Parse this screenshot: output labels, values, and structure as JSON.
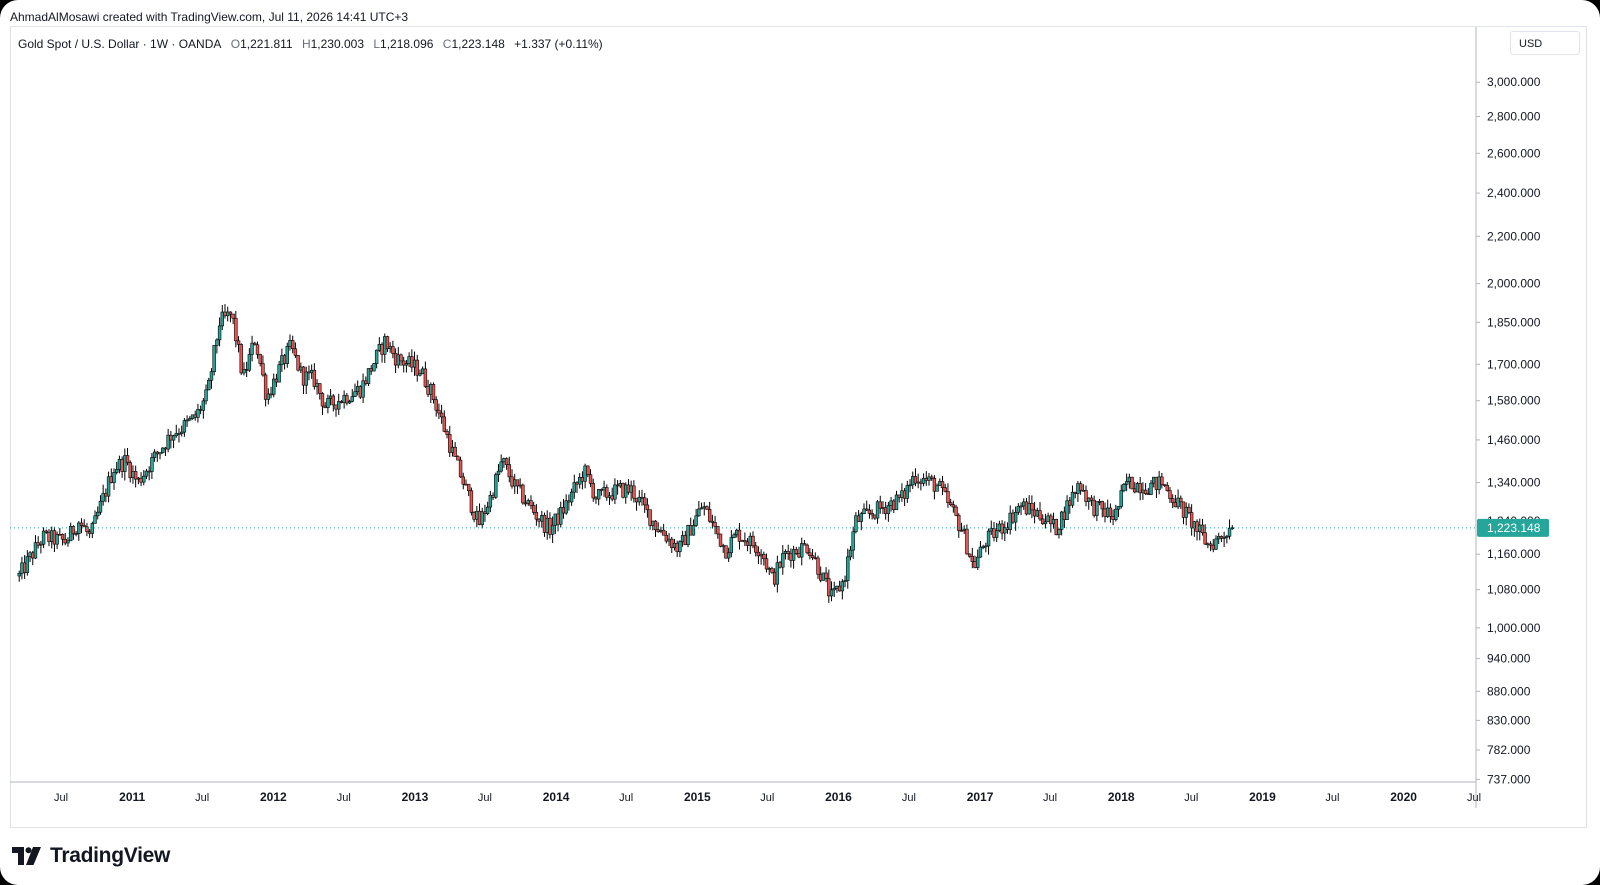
{
  "attribution": "AhmadAlMosawi created with TradingView.com, Jul 11, 2026 14:41 UTC+3",
  "legend": {
    "symbol": "Gold Spot / U.S. Dollar · 1W · OANDA",
    "open_label": "O",
    "open": "1,221.811",
    "high_label": "H",
    "high": "1,230.003",
    "low_label": "L",
    "low": "1,218.096",
    "close_label": "C",
    "close": "1,223.148",
    "change": "+1.337 (+0.11%)"
  },
  "currency_button": "USD",
  "brand": "TradingView",
  "colors": {
    "up": "#26a69a",
    "down": "#ef5350",
    "candle_outline": "#000000",
    "price_line": "#26a69a",
    "label_bg": "#26a69a"
  },
  "chart_data": {
    "type": "candlestick",
    "title": "Gold Spot / U.S. Dollar · 1W · OANDA",
    "y_scale": "log",
    "ylim": [
      720,
      3150
    ],
    "y_ticks": [
      "3,000.000",
      "2,800.000",
      "2,600.000",
      "2,400.000",
      "2,200.000",
      "2,000.000",
      "1,850.000",
      "1,700.000",
      "1,580.000",
      "1,460.000",
      "1,340.000",
      "1,160.000",
      "1,080.000",
      "1,000.000",
      "940.000",
      "880.000",
      "830.000",
      "782.000",
      "737.000"
    ],
    "y_tick_values": [
      3000,
      2800,
      2600,
      2400,
      2200,
      2000,
      1850,
      1700,
      1580,
      1460,
      1340,
      1160,
      1080,
      1000,
      940,
      880,
      830,
      782,
      737
    ],
    "x_ticks": [
      "Jul",
      "2011",
      "Jul",
      "2012",
      "Jul",
      "2013",
      "Jul",
      "2014",
      "Jul",
      "2015",
      "Jul",
      "2016",
      "Jul",
      "2017",
      "Jul",
      "2018",
      "Jul",
      "2019",
      "Jul",
      "2020",
      "Jul"
    ],
    "x_tick_dates": [
      "2010-07",
      "2011-01",
      "2011-07",
      "2012-01",
      "2012-07",
      "2013-01",
      "2013-07",
      "2014-01",
      "2014-07",
      "2015-01",
      "2015-07",
      "2016-01",
      "2016-07",
      "2017-01",
      "2017-07",
      "2018-01",
      "2018-07",
      "2019-01",
      "2019-07",
      "2020-01",
      "2020-07"
    ],
    "current_price": 1223.148,
    "current_price_label": "1,223.148",
    "hidden_tick_behind_label": "1,240.000",
    "anchors": [
      [
        "2010-03",
        1110
      ],
      [
        "2010-05",
        1200
      ],
      [
        "2010-07",
        1190
      ],
      [
        "2010-08",
        1240
      ],
      [
        "2010-09",
        1200
      ],
      [
        "2010-11",
        1380
      ],
      [
        "2010-12",
        1400
      ],
      [
        "2011-01",
        1340
      ],
      [
        "2011-02",
        1390
      ],
      [
        "2011-04",
        1480
      ],
      [
        "2011-05",
        1500
      ],
      [
        "2011-06",
        1530
      ],
      [
        "2011-07",
        1600
      ],
      [
        "2011-08",
        1850
      ],
      [
        "2011-09",
        1880
      ],
      [
        "2011-10",
        1650
      ],
      [
        "2011-11",
        1790
      ],
      [
        "2011-12",
        1590
      ],
      [
        "2012-01",
        1680
      ],
      [
        "2012-02",
        1760
      ],
      [
        "2012-03",
        1660
      ],
      [
        "2012-04",
        1650
      ],
      [
        "2012-05",
        1560
      ],
      [
        "2012-07",
        1600
      ],
      [
        "2012-08",
        1620
      ],
      [
        "2012-10",
        1780
      ],
      [
        "2012-11",
        1720
      ],
      [
        "2013-01",
        1680
      ],
      [
        "2013-02",
        1600
      ],
      [
        "2013-04",
        1400
      ],
      [
        "2013-06",
        1230
      ],
      [
        "2013-07",
        1300
      ],
      [
        "2013-08",
        1400
      ],
      [
        "2013-09",
        1330
      ],
      [
        "2013-11",
        1250
      ],
      [
        "2013-12",
        1220
      ],
      [
        "2014-01",
        1260
      ],
      [
        "2014-03",
        1370
      ],
      [
        "2014-04",
        1300
      ],
      [
        "2014-06",
        1320
      ],
      [
        "2014-07",
        1320
      ],
      [
        "2014-09",
        1230
      ],
      [
        "2014-11",
        1170
      ],
      [
        "2015-01",
        1280
      ],
      [
        "2015-03",
        1170
      ],
      [
        "2015-04",
        1210
      ],
      [
        "2015-06",
        1170
      ],
      [
        "2015-07",
        1100
      ],
      [
        "2015-08",
        1160
      ],
      [
        "2015-10",
        1180
      ],
      [
        "2015-12",
        1060
      ],
      [
        "2016-01",
        1100
      ],
      [
        "2016-02",
        1240
      ],
      [
        "2016-04",
        1270
      ],
      [
        "2016-06",
        1300
      ],
      [
        "2016-07",
        1360
      ],
      [
        "2016-09",
        1330
      ],
      [
        "2016-11",
        1220
      ],
      [
        "2016-12",
        1130
      ],
      [
        "2017-01",
        1190
      ],
      [
        "2017-03",
        1240
      ],
      [
        "2017-04",
        1280
      ],
      [
        "2017-06",
        1250
      ],
      [
        "2017-07",
        1220
      ],
      [
        "2017-09",
        1340
      ],
      [
        "2017-10",
        1280
      ],
      [
        "2017-12",
        1250
      ],
      [
        "2018-01",
        1340
      ],
      [
        "2018-03",
        1330
      ],
      [
        "2018-04",
        1340
      ],
      [
        "2018-05",
        1300
      ],
      [
        "2018-06",
        1260
      ],
      [
        "2018-08",
        1180
      ],
      [
        "2018-09",
        1200
      ],
      [
        "2018-10",
        1230
      ]
    ]
  }
}
